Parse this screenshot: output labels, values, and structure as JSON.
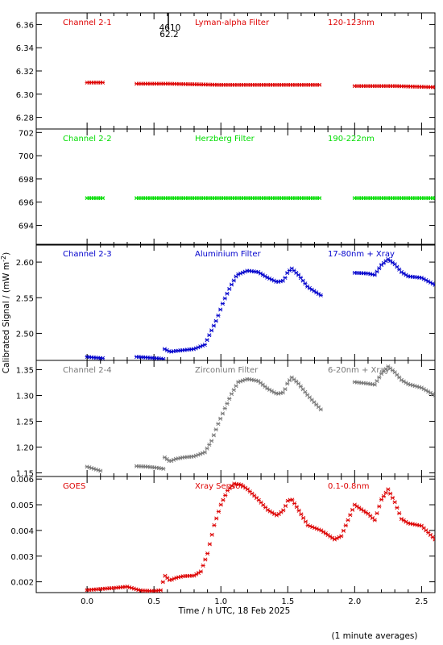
{
  "figure": {
    "ylabel": "Calibrated Signal / (mW m",
    "ylabel_sup": "-2",
    "ylabel_close": ")",
    "xlabel": "Time / h UTC, 18 Feb 2025",
    "footnote": "(1 minute averages)",
    "marker_top": "4610",
    "marker_bottom": "62.2"
  },
  "chart_data": [
    {
      "type": "scatter",
      "panel": "Channel 2-1",
      "filter": "Lyman-alpha Filter",
      "band": "120-123nm",
      "color": "#dd0000",
      "xlim": [
        -0.38,
        2.6
      ],
      "ylim": [
        6.27,
        6.37
      ],
      "yticks": [
        6.28,
        6.3,
        6.32,
        6.34,
        6.36
      ],
      "ytick_labels": [
        "6.28",
        "6.30",
        "6.32",
        "6.34",
        "6.36"
      ],
      "segments": [
        {
          "x": [
            0.0,
            0.1,
            0.12
          ],
          "y": [
            6.31,
            6.31,
            6.31
          ]
        },
        {
          "x": [
            0.37,
            0.6,
            1.0,
            1.4,
            1.75
          ],
          "y": [
            6.309,
            6.309,
            6.308,
            6.308,
            6.308
          ]
        },
        {
          "x": [
            2.0,
            2.3,
            2.6
          ],
          "y": [
            6.307,
            6.307,
            6.306
          ]
        }
      ]
    },
    {
      "type": "scatter",
      "panel": "Channel 2-2",
      "filter": "Herzberg Filter",
      "band": "190-222nm",
      "color": "#00dd00",
      "xlim": [
        -0.38,
        2.6
      ],
      "ylim": [
        692.3,
        702.3
      ],
      "yticks": [
        694,
        696,
        698,
        700,
        702
      ],
      "ytick_labels": [
        "694",
        "696",
        "698",
        "700",
        "702"
      ],
      "segments": [
        {
          "x": [
            0.0,
            0.12
          ],
          "y": [
            696.35,
            696.35
          ]
        },
        {
          "x": [
            0.37,
            1.0,
            1.75
          ],
          "y": [
            696.35,
            696.35,
            696.35
          ]
        },
        {
          "x": [
            2.0,
            2.6
          ],
          "y": [
            696.35,
            696.35
          ]
        }
      ]
    },
    {
      "type": "scatter",
      "panel": "Channel 2-3",
      "filter": "Aluminium Filter",
      "band": "17-80nm + Xray",
      "color": "#0000cc",
      "xlim": [
        -0.38,
        2.6
      ],
      "ylim": [
        2.462,
        2.625
      ],
      "yticks": [
        2.5,
        2.55,
        2.6
      ],
      "ytick_labels": [
        "2.50",
        "2.55",
        "2.60"
      ],
      "segments": [
        {
          "x": [
            0.0,
            0.05,
            0.12
          ],
          "y": [
            2.467,
            2.466,
            2.465
          ]
        },
        {
          "x": [
            0.37,
            0.45,
            0.52,
            0.57
          ],
          "y": [
            2.467,
            2.466,
            2.465,
            2.464
          ]
        },
        {
          "x": [
            0.58,
            0.62,
            0.65,
            0.7,
            0.8,
            0.88,
            0.92,
            0.97,
            1.02,
            1.07,
            1.12,
            1.2,
            1.28,
            1.35,
            1.42,
            1.47,
            1.5,
            1.53,
            1.58,
            1.65,
            1.75
          ],
          "y": [
            2.478,
            2.474,
            2.475,
            2.476,
            2.478,
            2.484,
            2.5,
            2.52,
            2.545,
            2.565,
            2.582,
            2.588,
            2.586,
            2.578,
            2.572,
            2.574,
            2.586,
            2.591,
            2.582,
            2.565,
            2.553
          ]
        },
        {
          "x": [
            2.0,
            2.1,
            2.15,
            2.2,
            2.25,
            2.3,
            2.35,
            2.4,
            2.5,
            2.6
          ],
          "y": [
            2.585,
            2.584,
            2.582,
            2.596,
            2.604,
            2.597,
            2.586,
            2.58,
            2.578,
            2.568
          ]
        }
      ]
    },
    {
      "type": "scatter",
      "panel": "Channel 2-4",
      "filter": "Zirconium Filter",
      "band": "6-20nm + Xray",
      "color": "#777777",
      "xlim": [
        -0.38,
        2.6
      ],
      "ylim": [
        1.143,
        1.368
      ],
      "yticks": [
        1.15,
        1.2,
        1.25,
        1.3,
        1.35
      ],
      "ytick_labels": [
        "1.15",
        "1.20",
        "1.25",
        "1.30",
        "1.35"
      ],
      "segments": [
        {
          "x": [
            0.0,
            0.05,
            0.1
          ],
          "y": [
            1.162,
            1.158,
            1.154
          ]
        },
        {
          "x": [
            0.37,
            0.45,
            0.52,
            0.57
          ],
          "y": [
            1.163,
            1.162,
            1.16,
            1.158
          ]
        },
        {
          "x": [
            0.58,
            0.62,
            0.66,
            0.72,
            0.8,
            0.88,
            0.93,
            0.98,
            1.03,
            1.08,
            1.13,
            1.2,
            1.28,
            1.35,
            1.42,
            1.47,
            1.5,
            1.53,
            1.58,
            1.65,
            1.75
          ],
          "y": [
            1.18,
            1.172,
            1.177,
            1.18,
            1.182,
            1.19,
            1.212,
            1.245,
            1.275,
            1.303,
            1.326,
            1.332,
            1.328,
            1.313,
            1.303,
            1.306,
            1.325,
            1.335,
            1.323,
            1.3,
            1.272
          ]
        },
        {
          "x": [
            2.0,
            2.1,
            2.15,
            2.2,
            2.25,
            2.3,
            2.35,
            2.4,
            2.5,
            2.6
          ],
          "y": [
            1.326,
            1.323,
            1.321,
            1.342,
            1.356,
            1.345,
            1.33,
            1.322,
            1.315,
            1.3
          ]
        }
      ]
    },
    {
      "type": "scatter",
      "panel": "GOES",
      "filter": "Xray Sensor",
      "band": "0.1-0.8nm",
      "color": "#dd0000",
      "xlim": [
        -0.38,
        2.6
      ],
      "ylim": [
        0.00158,
        0.0061
      ],
      "yticks": [
        0.002,
        0.003,
        0.004,
        0.005,
        0.006
      ],
      "ytick_labels": [
        "0.002",
        "0.003",
        "0.004",
        "0.005",
        "0.006"
      ],
      "xticks": [
        0.0,
        0.5,
        1.0,
        1.5,
        2.0,
        2.5
      ],
      "xtick_labels": [
        "0.0",
        "0.5",
        "1.0",
        "1.5",
        "2.0",
        "2.5"
      ],
      "segments": [
        {
          "x": [
            0.0,
            0.1,
            0.2,
            0.3,
            0.4,
            0.5,
            0.55,
            0.58,
            0.62,
            0.66,
            0.72,
            0.8,
            0.85,
            0.9,
            0.95,
            1.0,
            1.05,
            1.1,
            1.15,
            1.2,
            1.28,
            1.35,
            1.42,
            1.47,
            1.5,
            1.53,
            1.58,
            1.65,
            1.75,
            1.85,
            1.9,
            1.95,
            2.0,
            2.05,
            2.1,
            2.15,
            2.2,
            2.25,
            2.3,
            2.35,
            2.4,
            2.5,
            2.6
          ],
          "y": [
            0.00168,
            0.00172,
            0.00176,
            0.00181,
            0.00166,
            0.00164,
            0.00167,
            0.00225,
            0.00205,
            0.00215,
            0.00222,
            0.00224,
            0.0024,
            0.0031,
            0.0042,
            0.005,
            0.00555,
            0.00582,
            0.00578,
            0.0056,
            0.0052,
            0.0048,
            0.00458,
            0.0048,
            0.00515,
            0.00522,
            0.0048,
            0.0042,
            0.004,
            0.00365,
            0.00378,
            0.0044,
            0.005,
            0.00482,
            0.00465,
            0.0044,
            0.0052,
            0.0056,
            0.0051,
            0.00445,
            0.00428,
            0.00418,
            0.00365
          ]
        }
      ]
    }
  ]
}
